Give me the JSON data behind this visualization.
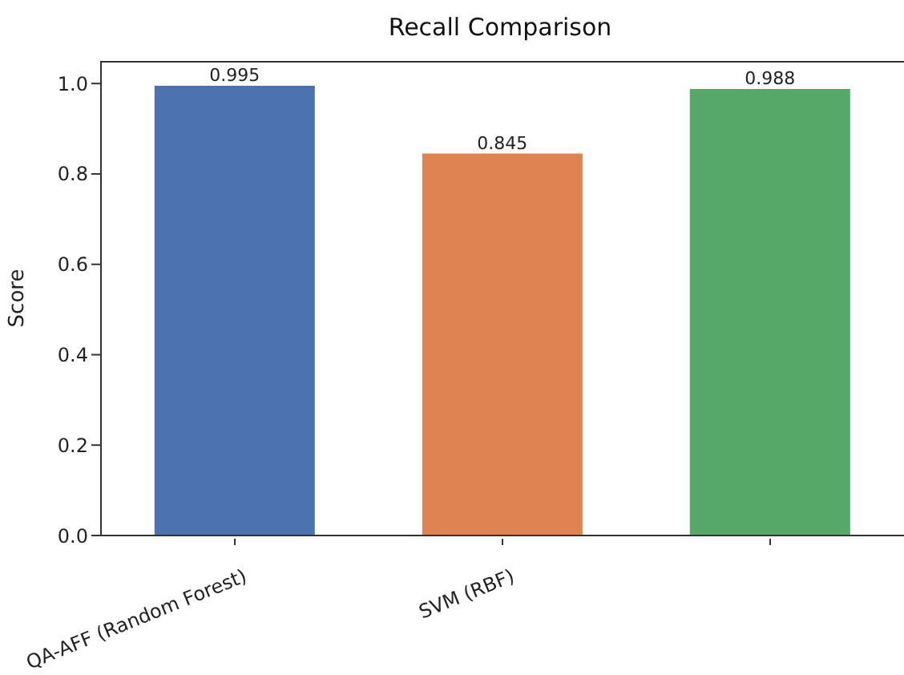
{
  "chart_data": {
    "type": "bar",
    "title": "Recall Comparison",
    "ylabel": "Score",
    "categories": [
      "QA-AFF (Random Forest)",
      "SVM (RBF)",
      null
    ],
    "values": [
      0.995,
      0.845,
      0.988
    ],
    "colors": [
      "#4c72b0",
      "#dd8452",
      "#55a868"
    ],
    "ylim": [
      0,
      1.05
    ],
    "yticks": [
      {
        "value": 0,
        "label": "0.0"
      },
      0.2,
      0.4,
      0.6,
      0.8,
      {
        "value": 1,
        "label": "1.0"
      }
    ],
    "data_labels": true,
    "grid": false,
    "legend": false
  }
}
